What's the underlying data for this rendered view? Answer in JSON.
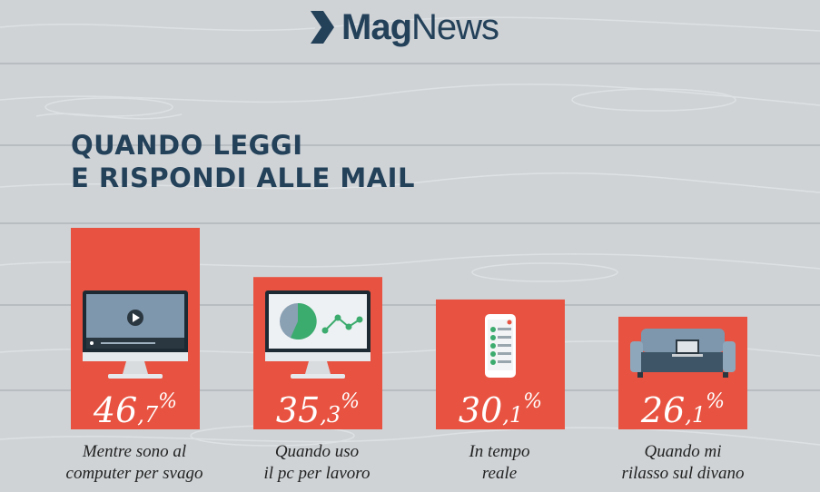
{
  "logo": {
    "brand_bold": "Mag",
    "brand_light": "News"
  },
  "title": {
    "line1": "QUANDO LEGGI",
    "line2": "E RISPONDI ALLE MAIL"
  },
  "colors": {
    "bar": "#e85341",
    "title": "#24415a",
    "background": "#cfd3d6"
  },
  "chart_data": {
    "type": "bar",
    "unit": "%",
    "categories": [
      {
        "line1": "Mentre sono al",
        "line2": "computer per svago",
        "icon": "monitor-video-icon"
      },
      {
        "line1": "Quando uso",
        "line2": "il pc per lavoro",
        "icon": "monitor-chart-icon"
      },
      {
        "line1": "In tempo",
        "line2": "reale",
        "icon": "smartphone-icon"
      },
      {
        "line1": "Quando mi",
        "line2": "rilasso sul divano",
        "icon": "sofa-laptop-icon"
      }
    ],
    "values": [
      46.7,
      35.3,
      30.1,
      26.1
    ],
    "value_labels": [
      {
        "int": "46",
        "dec": ",7",
        "pct": "%"
      },
      {
        "int": "35",
        "dec": ",3",
        "pct": "%"
      },
      {
        "int": "30",
        "dec": ",1",
        "pct": "%"
      },
      {
        "int": "26",
        "dec": ",1",
        "pct": "%"
      }
    ],
    "ylim": [
      0,
      46.7
    ]
  }
}
